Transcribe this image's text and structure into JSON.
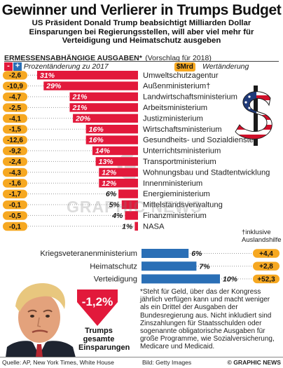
{
  "title": "Gewinner und Verlierer in Trumps Budget",
  "subtitle": "US Präsident Donald Trump beabsichtigt Milliarden Dollar Einsparungen bei Regierungsstellen, will aber viel mehr für Verteidigung und Heimatschutz ausgeben",
  "section_title": "ERMESSENSABHÄNGIGE  AUSGABEN*",
  "section_year": "(Vorschlag für 2018)",
  "legend": {
    "minus_symbol": "-",
    "plus_symbol": "+",
    "percent_label": "Prozentänderung zu 2017",
    "mrd_badge": "$Mrd",
    "mrd_label": "Wertänderung"
  },
  "colors": {
    "cut": "#e2193b",
    "increase": "#2a6fb6",
    "pill": "#f6a821",
    "dots": "#9a9a9a"
  },
  "chart_data": {
    "type": "bar",
    "orientation": "horizontal",
    "title": "ERMESSENSABHÄNGIGE  AUSGABEN*",
    "xlabel": "Prozentänderung zu 2017",
    "series_cuts": [
      {
        "label": "Umweltschutzagentur",
        "pct": -31,
        "pct_label": "31%",
        "mrd": "-2,6"
      },
      {
        "label": "Außenministerium†",
        "pct": -29,
        "pct_label": "29%",
        "mrd": "-10,9"
      },
      {
        "label": "Landwirtschaftsministerium",
        "pct": -21,
        "pct_label": "21%",
        "mrd": "-4,7"
      },
      {
        "label": "Arbeitsministerium",
        "pct": -21,
        "pct_label": "21%",
        "mrd": "-2,5"
      },
      {
        "label": "Justizministerium",
        "pct": -20,
        "pct_label": "20%",
        "mrd": "-4,1"
      },
      {
        "label": "Wirtschaftsministerium",
        "pct": -16,
        "pct_label": "16%",
        "mrd": "-1,5"
      },
      {
        "label": "Gesundheits- und Sozialdienste",
        "pct": -16,
        "pct_label": "16%",
        "mrd": "-12,6"
      },
      {
        "label": "Unterrichtsministerium",
        "pct": -14,
        "pct_label": "14%",
        "mrd": "-9,2"
      },
      {
        "label": "Transportministerium",
        "pct": -13,
        "pct_label": "13%",
        "mrd": "-2,4"
      },
      {
        "label": "Wohnungsbau und Stadtentwicklung",
        "pct": -12,
        "pct_label": "12%",
        "mrd": "-4,3"
      },
      {
        "label": "Innenministerium",
        "pct": -12,
        "pct_label": "12%",
        "mrd": "-1,6"
      },
      {
        "label": "Energieministerium",
        "pct": -6,
        "pct_label": "6%",
        "mrd": "-1,7"
      },
      {
        "label": "Mittelstandsverwaltung",
        "pct": -5,
        "pct_label": "5%",
        "mrd": "-0,1"
      },
      {
        "label": "Finanzministerium",
        "pct": -4,
        "pct_label": "4%",
        "mrd": "-0,5"
      },
      {
        "label": "NASA",
        "pct": -1,
        "pct_label": "1%",
        "mrd": "-0,1"
      }
    ],
    "series_increases": [
      {
        "label": "Kriegsveteranenministerium",
        "pct": 6,
        "pct_label": "6%",
        "mrd": "+4,4"
      },
      {
        "label": "Heimatschutz",
        "pct": 7,
        "pct_label": "7%",
        "mrd": "+2,8"
      },
      {
        "label": "Verteidigung",
        "pct": 10,
        "pct_label": "10%",
        "mrd": "+52,3"
      }
    ],
    "xlim": [
      0,
      31
    ]
  },
  "footnote_dagger": "†inklusive Auslandshilfe",
  "total": {
    "value": "-1,2%",
    "caption_line1": "Trumps",
    "caption_line2": "gesamte",
    "caption_line3": "Einsparungen"
  },
  "note": "*Steht für Geld, über das der Kongress jährlich verfügen kann und macht weniger als ein Drittel der Ausgaben der Bundesregierung aus. Nicht inkludiert sind Zinszahlungen für Staatsschulden oder sogenannte obligatorische Ausgaben für große Programme, wie Sozialversicherung, Medicare und Medicaid.",
  "watermark": "GRAPHIC NEWS",
  "footer": {
    "source": "Quelle: AP, New York Times, White House",
    "photo_credit": "Bild: Getty Images",
    "brand": "© GRAPHIC NEWS"
  }
}
